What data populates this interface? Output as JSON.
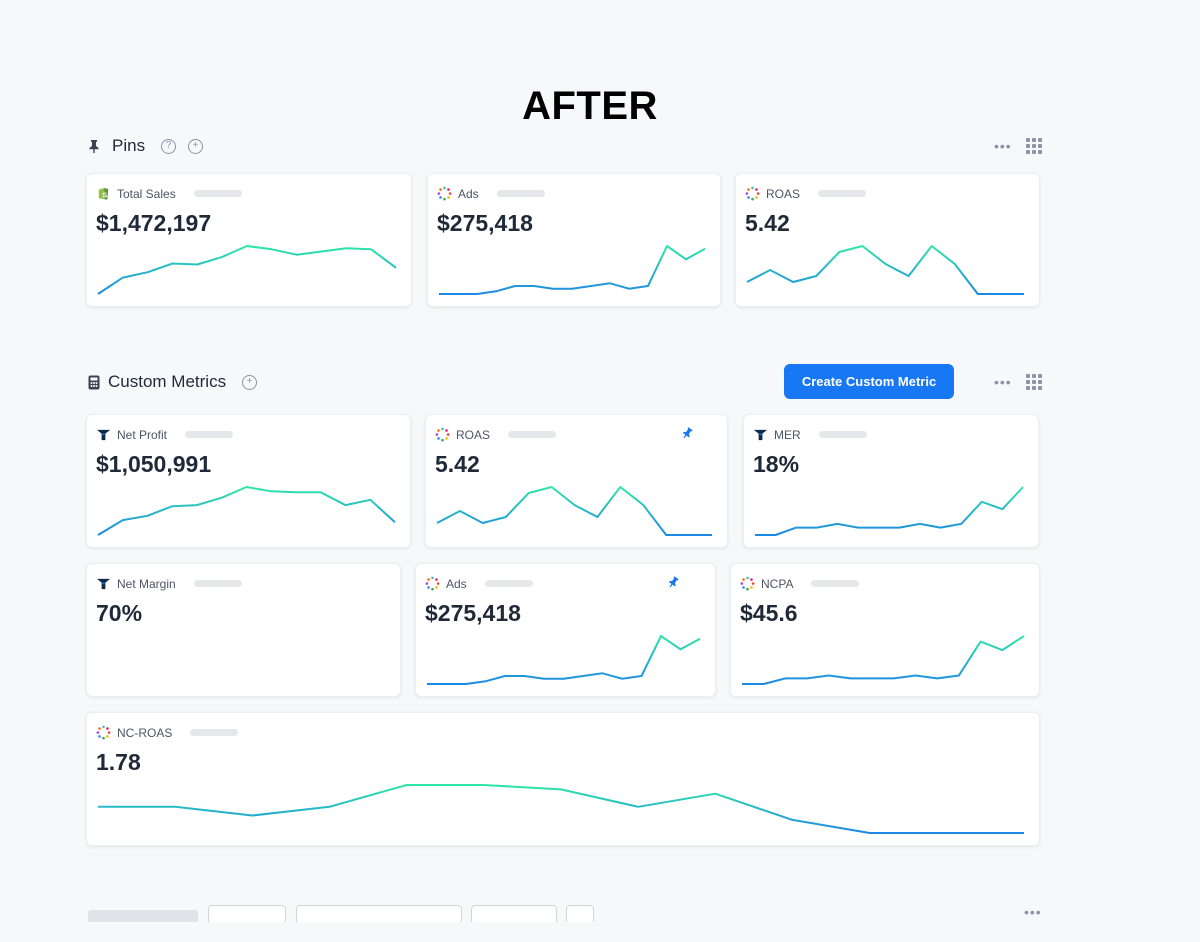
{
  "banner": "AFTER",
  "pins": {
    "title": "Pins",
    "cards": [
      {
        "label": "Total Sales",
        "value": "$1,472,197",
        "icon": "shopify-icon",
        "values": [
          2,
          17,
          22,
          30,
          29,
          36,
          46,
          43,
          38,
          41,
          44,
          43,
          26
        ]
      },
      {
        "label": "Ads",
        "value": "$275,418",
        "icon": "ads-dots-icon",
        "values": [
          1,
          1,
          1,
          2,
          4,
          4,
          3,
          3,
          4,
          5,
          3,
          4,
          19,
          14,
          18
        ]
      },
      {
        "label": "ROAS",
        "value": "5.42",
        "icon": "ads-dots-icon",
        "values": [
          3,
          5,
          3,
          4,
          8,
          9,
          6,
          4,
          9,
          6,
          1,
          1,
          1
        ]
      }
    ]
  },
  "custom": {
    "title": "Custom Metrics",
    "button": "Create Custom Metric",
    "cards": [
      {
        "label": "Net Profit",
        "value": "$1,050,991",
        "icon": "triple-whale-icon",
        "values": [
          2,
          16,
          20,
          29,
          30,
          37,
          47,
          43,
          42,
          42,
          30,
          35,
          14
        ]
      },
      {
        "label": "ROAS",
        "value": "5.42",
        "icon": "ads-dots-icon",
        "pinned": true,
        "values": [
          3,
          5,
          3,
          4,
          8,
          9,
          6,
          4,
          9,
          6,
          1,
          1,
          1
        ]
      },
      {
        "label": "MER",
        "value": "18%",
        "icon": "triple-whale-icon",
        "values": [
          1,
          1,
          3,
          3,
          4,
          3,
          3,
          3,
          4,
          3,
          4,
          10,
          8,
          14
        ]
      },
      {
        "label": "Net Margin",
        "value": "70%",
        "icon": "triple-whale-icon",
        "values": []
      },
      {
        "label": "Ads",
        "value": "$275,418",
        "icon": "ads-dots-icon",
        "pinned": true,
        "values": [
          1,
          1,
          1,
          2,
          4,
          4,
          3,
          3,
          4,
          5,
          3,
          4,
          19,
          14,
          18
        ]
      },
      {
        "label": "NCPA",
        "value": "$45.6",
        "icon": "ads-dots-icon",
        "values": [
          1,
          1,
          3,
          3,
          4,
          3,
          3,
          3,
          4,
          3,
          4,
          16,
          13,
          18
        ]
      },
      {
        "label": "NC-ROAS",
        "value": "1.78",
        "icon": "ads-dots-icon",
        "values": [
          1.4,
          1.4,
          1.2,
          1.4,
          1.9,
          1.9,
          1.8,
          1.4,
          1.7,
          1.1,
          0.8,
          0.8,
          0.8
        ]
      }
    ]
  },
  "colors": {
    "accent": "#1877f2",
    "spark_low": "#1e88e5",
    "spark_high": "#2ee6a8"
  }
}
